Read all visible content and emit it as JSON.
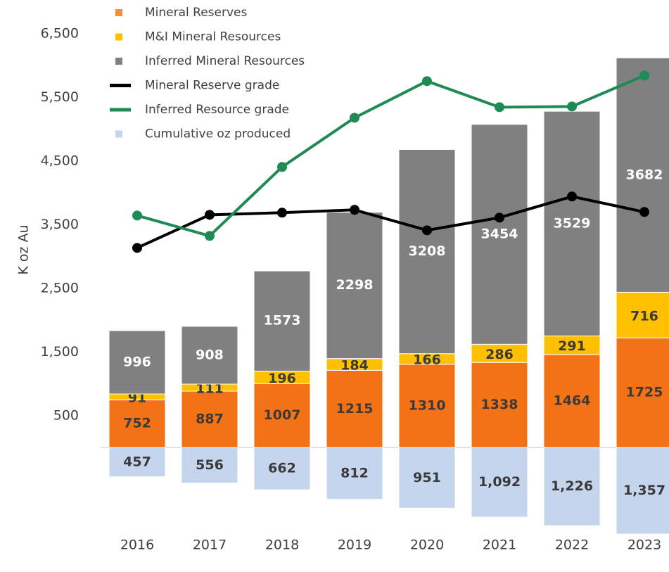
{
  "chart_data": {
    "type": "bar",
    "y_label": "K oz Au",
    "categories": [
      "2016",
      "2017",
      "2018",
      "2019",
      "2020",
      "2021",
      "2022",
      "2023"
    ],
    "stacked": true,
    "series": [
      {
        "name": "Mineral Reserves",
        "color": "#f47216",
        "values": [
          752,
          887,
          1007,
          1215,
          1310,
          1338,
          1464,
          1725
        ]
      },
      {
        "name": "M&I Mineral Resources",
        "color": "#ffc000",
        "values": [
          91,
          111,
          196,
          184,
          166,
          286,
          291,
          716
        ]
      },
      {
        "name": "Inferred Mineral Resources",
        "color": "#808080",
        "values": [
          996,
          908,
          1573,
          2298,
          3208,
          3454,
          3529,
          3682
        ]
      },
      {
        "name": "Mineral Reserve grade",
        "type": "line",
        "color": "#000000",
        "values": [
          3138,
          3657,
          3691,
          3735,
          3414,
          3613,
          3945,
          3702
        ]
      },
      {
        "name": "Inferred Resource grade",
        "type": "line",
        "color": "#1f8a54",
        "values": [
          3646,
          3326,
          4409,
          5182,
          5757,
          5348,
          5359,
          5845
        ]
      },
      {
        "name": "Cumulative oz produced",
        "color": "#c5d5ee",
        "values": [
          -457,
          -556,
          -662,
          -812,
          -951,
          -1092,
          -1226,
          -1357
        ],
        "value_labels": [
          "457",
          "556",
          "662",
          "812",
          "951",
          "1,092",
          "1,226",
          "1,357"
        ]
      }
    ],
    "ylim": [
      -1500,
      6700
    ],
    "yticks": [
      500,
      {
        "value": 1500,
        "label": "1,500"
      },
      {
        "value": 2500,
        "label": "2,500"
      },
      {
        "value": 3500,
        "label": "3,500"
      },
      {
        "value": 4500,
        "label": "4,500"
      },
      {
        "value": 5500,
        "label": "5,500"
      },
      {
        "value": 6500,
        "label": "6,500"
      }
    ]
  }
}
